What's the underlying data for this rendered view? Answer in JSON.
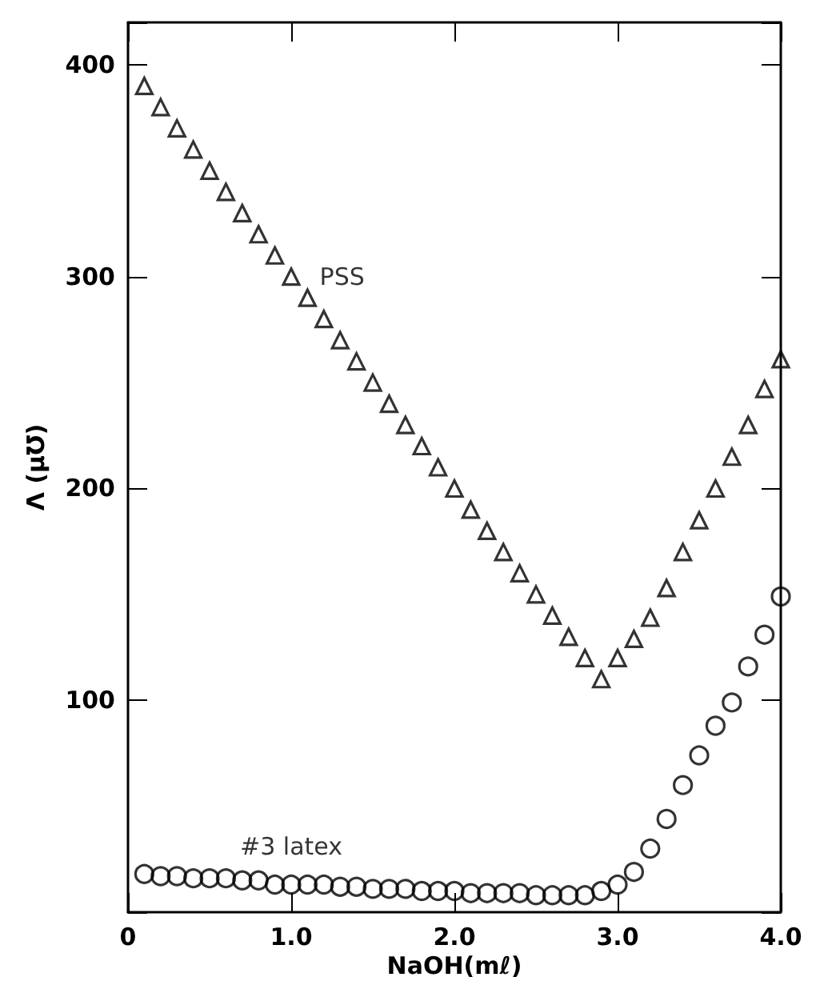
{
  "chart_data": {
    "type": "scatter",
    "xlabel": "NaOH(mℓ)",
    "ylabel": "Λ (μ℧)",
    "xlim": [
      0,
      4
    ],
    "ylim": [
      0,
      420
    ],
    "xticks": [
      0,
      {
        "value": 1,
        "label": "1.0"
      },
      {
        "value": 2,
        "label": "2.0"
      },
      {
        "value": 3,
        "label": "3.0"
      },
      {
        "value": 4,
        "label": "4.0"
      }
    ],
    "yticks": [
      100,
      200,
      300,
      400
    ],
    "grid": false,
    "legend": false,
    "series": [
      {
        "name": "PSS",
        "marker": "triangle",
        "color": "#000000",
        "x": [
          0.1,
          0.2,
          0.3,
          0.4,
          0.5,
          0.6,
          0.7,
          0.8,
          0.9,
          1.0,
          1.1,
          1.2,
          1.3,
          1.4,
          1.5,
          1.6,
          1.7,
          1.8,
          1.9,
          2.0,
          2.1,
          2.2,
          2.3,
          2.4,
          2.5,
          2.6,
          2.7,
          2.8,
          2.9,
          3.0,
          3.1,
          3.2,
          3.3,
          3.4,
          3.5,
          3.6,
          3.7,
          3.8,
          3.9,
          4.0
        ],
        "values": [
          390,
          380,
          370,
          360,
          350,
          340,
          330,
          320,
          310,
          300,
          290,
          280,
          270,
          260,
          250,
          240,
          230,
          220,
          210,
          200,
          190,
          180,
          170,
          160,
          150,
          140,
          130,
          120,
          110,
          120,
          129,
          139,
          153,
          170,
          185,
          200,
          215,
          230,
          247,
          261
        ]
      },
      {
        "name": "#3 latex",
        "marker": "circle",
        "color": "#000000",
        "x": [
          0.1,
          0.2,
          0.3,
          0.4,
          0.5,
          0.6,
          0.7,
          0.8,
          0.9,
          1.0,
          1.1,
          1.2,
          1.3,
          1.4,
          1.5,
          1.6,
          1.7,
          1.8,
          1.9,
          2.0,
          2.1,
          2.2,
          2.3,
          2.4,
          2.5,
          2.6,
          2.7,
          2.8,
          2.9,
          3.0,
          3.1,
          3.2,
          3.3,
          3.4,
          3.5,
          3.6,
          3.7,
          3.8,
          3.9,
          4.0
        ],
        "values": [
          18,
          17,
          17,
          16,
          16,
          16,
          15,
          15,
          13,
          13,
          13,
          13,
          12,
          12,
          11,
          11,
          11,
          10,
          10,
          10,
          9,
          9,
          9,
          9,
          8,
          8,
          8,
          8,
          10,
          13,
          19,
          30,
          44,
          60,
          74,
          88,
          99,
          116,
          131,
          149
        ]
      }
    ]
  }
}
